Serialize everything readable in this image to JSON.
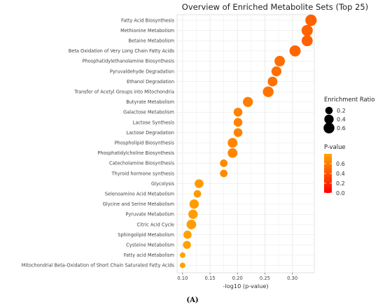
{
  "chart_data": {
    "type": "scatter",
    "title": "Overview of Enriched Metabolite Sets (Top 25)",
    "xlabel": "-log10 (p-value)",
    "ylabel": "",
    "xlim": [
      0.09,
      0.34
    ],
    "xticks": [
      0.1,
      0.15,
      0.2,
      0.25,
      0.3
    ],
    "xtick_labels": [
      "0.10",
      "0.15",
      "0.20",
      "0.25",
      "0.30"
    ],
    "grid": true,
    "categories": [
      "Fatty Acid Biosynthesis",
      "Methionine Metabolism",
      "Betaine Metabolism",
      "Beta Oxidation of Very Long Chain Fatty Acids",
      "Phosphatidylethanolamine Biosynthesis",
      "Pyruvaldehyde Degradation",
      "Ethanol Degradation",
      "Transfer of Acetyl Groups into Mitochondria",
      "Butyrate Metabolism",
      "Galactose Metabolism",
      "Lactose Synthesis",
      "Lactose Degradation",
      "Phospholipid Biosynthesis",
      "Phosphatidylcholine Biosynthesis",
      "Catecholamine Biosynthesis",
      "Thyroid hormone synthesis",
      "Glycolysis",
      "Selenoamino Acid Metabolism",
      "Glycine and Serine Metabolism",
      "Pyruvate Metabolism",
      "Citric Acid Cycle",
      "Sphingolipid Metabolism",
      "Cysteine Metabolism",
      "Fatty acid Metabolism",
      "Mitochondrial Beta-Oxidation of Short Chain Saturated Fatty Acids"
    ],
    "x": [
      0.334,
      0.327,
      0.327,
      0.305,
      0.277,
      0.271,
      0.264,
      0.256,
      0.219,
      0.201,
      0.201,
      0.201,
      0.191,
      0.191,
      0.175,
      0.175,
      0.13,
      0.127,
      0.121,
      0.119,
      0.116,
      0.109,
      0.108,
      0.1,
      0.1
    ],
    "enrichment_ratio": [
      0.68,
      0.66,
      0.63,
      0.65,
      0.55,
      0.48,
      0.45,
      0.58,
      0.48,
      0.33,
      0.33,
      0.33,
      0.44,
      0.44,
      0.21,
      0.21,
      0.33,
      0.2,
      0.4,
      0.4,
      0.44,
      0.27,
      0.25,
      0.07,
      0.07
    ],
    "p_value": [
      0.464,
      0.471,
      0.471,
      0.495,
      0.528,
      0.536,
      0.544,
      0.554,
      0.604,
      0.63,
      0.63,
      0.63,
      0.644,
      0.644,
      0.668,
      0.668,
      0.741,
      0.746,
      0.757,
      0.76,
      0.766,
      0.778,
      0.78,
      0.794,
      0.794
    ],
    "size_legend": {
      "title": "Enrichment Ratio",
      "values": [
        0.2,
        0.4,
        0.6
      ],
      "labels": [
        "0.2",
        "0.4",
        "0.6"
      ],
      "placement": "right"
    },
    "color_legend": {
      "title": "P-value",
      "range": [
        0.0,
        0.8
      ],
      "ticks": [
        0.0,
        0.2,
        0.4,
        0.6
      ],
      "labels": [
        "0.0",
        "0.2",
        "0.4",
        "0.6"
      ],
      "low_color": "#ff0000",
      "high_color": "#ffa500",
      "placement": "right"
    },
    "caption": "(A)"
  }
}
